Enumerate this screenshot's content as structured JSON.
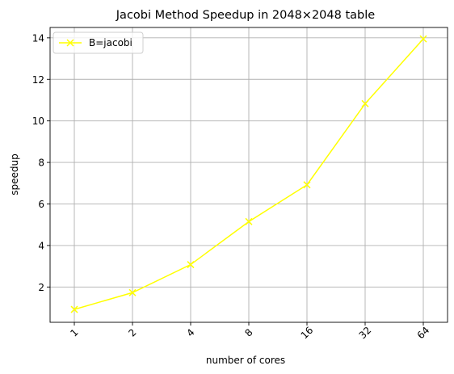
{
  "chart_data": {
    "type": "line",
    "title": "Jacobi Method Speedup in 2048×2048 table",
    "xlabel": "number of cores",
    "ylabel": "speedup",
    "categories": [
      "1",
      "2",
      "4",
      "8",
      "16",
      "32",
      "64"
    ],
    "series": [
      {
        "name": "B=jacobi",
        "color": "#ffff00",
        "marker": "x",
        "values": [
          0.92,
          1.73,
          3.08,
          5.15,
          6.92,
          10.83,
          13.95
        ]
      }
    ],
    "ylim": [
      0.3,
      14.5
    ],
    "yticks": [
      2,
      4,
      6,
      8,
      10,
      12,
      14
    ],
    "grid": true,
    "legend_position": "upper-left"
  }
}
